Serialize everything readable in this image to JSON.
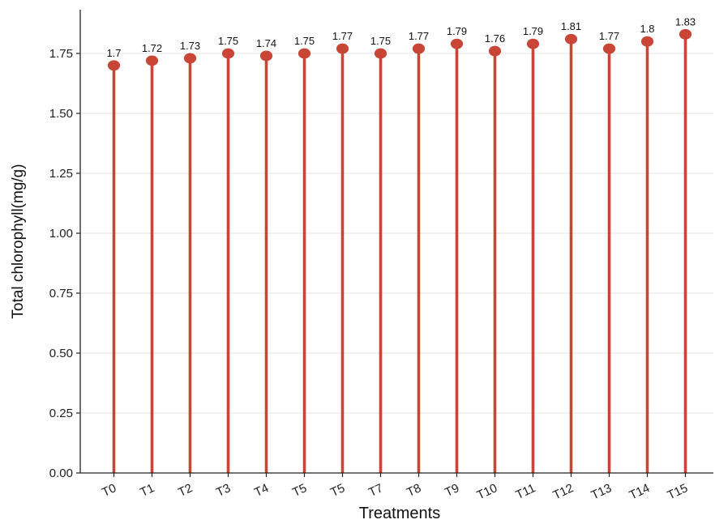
{
  "chart_data": {
    "type": "lollipop",
    "title": "",
    "xlabel": "Treatments",
    "ylabel": "Total chlorophyll(mg/g)",
    "ylim": [
      0,
      1.9
    ],
    "y_ticks": [
      "0.00",
      "0.25",
      "0.50",
      "0.75",
      "1.00",
      "1.25",
      "1.50",
      "1.75"
    ],
    "categories": [
      "T0",
      "T1",
      "T2",
      "T3",
      "T4",
      "T5",
      "T5",
      "T7",
      "T8",
      "T9",
      "T10",
      "T11",
      "T12",
      "T13",
      "T14",
      "T15"
    ],
    "values": [
      1.7,
      1.72,
      1.73,
      1.75,
      1.74,
      1.75,
      1.77,
      1.75,
      1.77,
      1.79,
      1.76,
      1.79,
      1.81,
      1.77,
      1.8,
      1.83
    ],
    "data_labels": [
      "1.7",
      "1.72",
      "1.73",
      "1.75",
      "1.74",
      "1.75",
      "1.77",
      "1.75",
      "1.77",
      "1.79",
      "1.76",
      "1.79",
      "1.81",
      "1.77",
      "1.8",
      "1.83"
    ],
    "grid": "horizontal",
    "colors": {
      "marker": "#c94535",
      "grid": "#e3e3e3",
      "axis": "#222222"
    }
  }
}
